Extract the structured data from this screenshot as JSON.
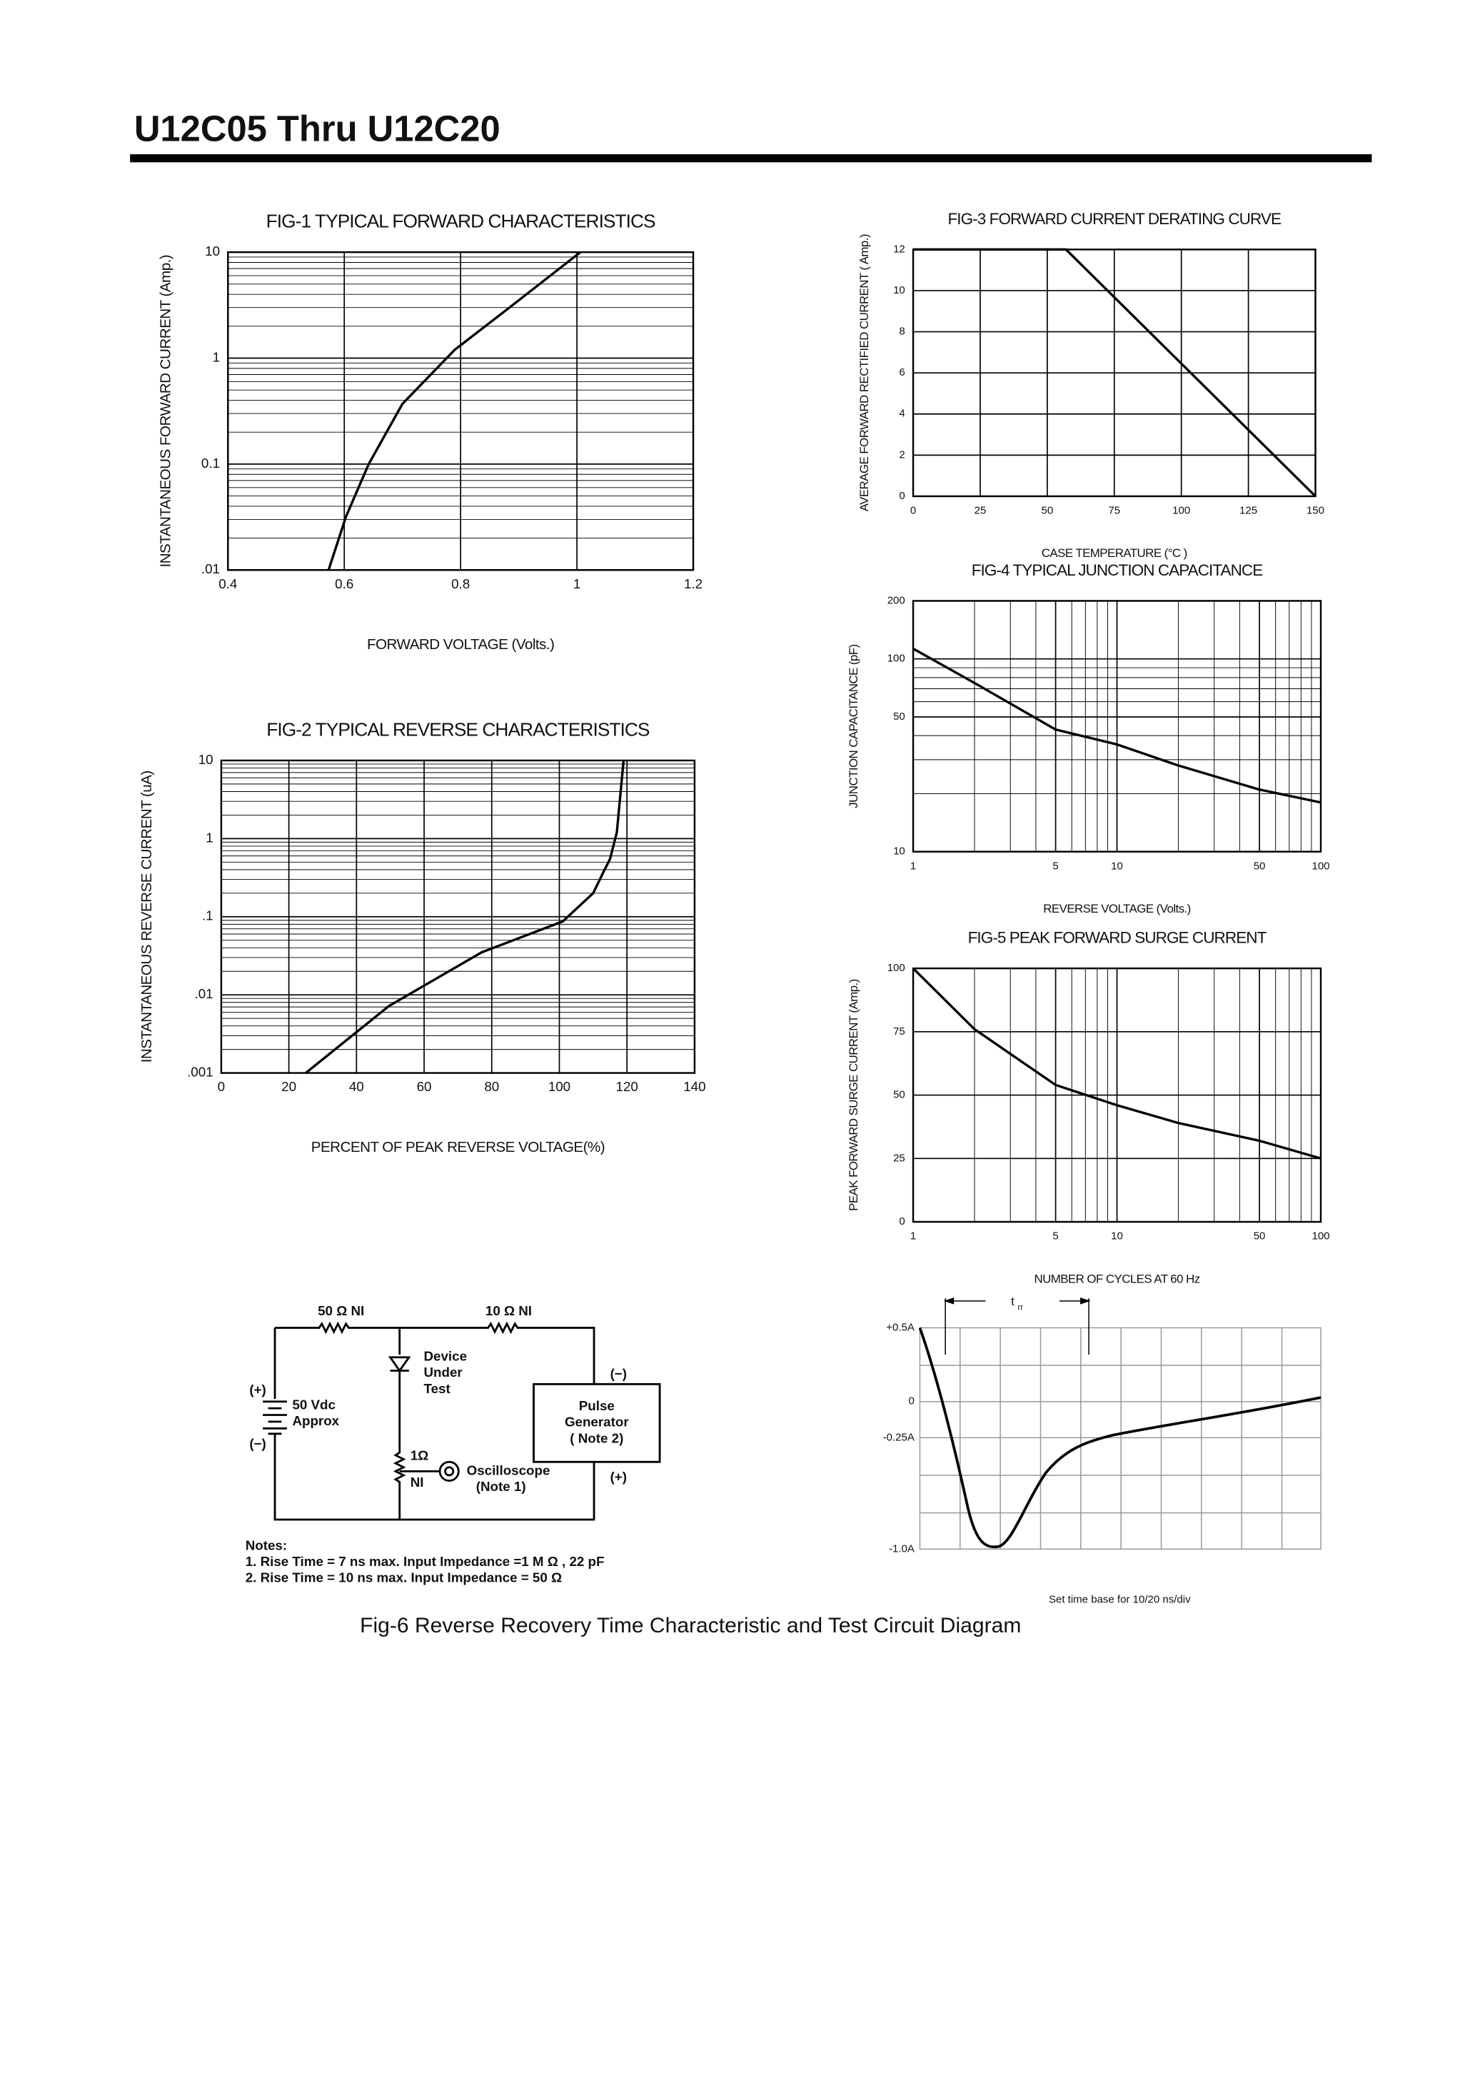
{
  "title": "U12C05 Thru U12C20",
  "chart_data": [
    {
      "type": "line",
      "title": "FIG-1 TYPICAL FORWARD CHARACTERISTICS",
      "xlabel": "FORWARD VOLTAGE (Volts.)",
      "ylabel": "INSTANTANEOUS FORWARD CURRENT (Amp.)",
      "xlim": [
        0.4,
        1.2
      ],
      "ylim": [
        0.01,
        10
      ],
      "xticks": [
        0.4,
        0.6,
        0.8,
        1,
        1.2
      ],
      "yticks": [
        {
          "value": 0.01,
          "label": ".01"
        },
        0.1,
        1,
        10
      ],
      "yscale": "log",
      "grid": true,
      "minor_grid": true,
      "series": [
        {
          "color": "#000000",
          "x": [
            0.573,
            0.603,
            0.642,
            0.7,
            0.79,
            0.884,
            1.006
          ],
          "values": [
            0.01,
            0.032,
            0.1,
            0.37,
            1.2,
            3,
            10
          ]
        }
      ]
    },
    {
      "type": "line",
      "title": "FIG-2 TYPICAL REVERSE CHARACTERISTICS",
      "xlabel": "PERCENT OF PEAK REVERSE VOLTAGE(%)",
      "ylabel": "INSTANTANEOUS REVERSE CURRENT (uA)",
      "xlim": [
        0,
        140
      ],
      "ylim": [
        0.001,
        10
      ],
      "xticks": [
        0,
        20,
        40,
        60,
        80,
        100,
        120,
        140
      ],
      "yticks": [
        {
          "value": 0.001,
          "label": ".001"
        },
        {
          "value": 0.01,
          "label": ".01"
        },
        {
          "value": 0.1,
          "label": ".1"
        },
        1,
        10
      ],
      "yscale": "log",
      "grid": true,
      "minor_grid": true,
      "series": [
        {
          "color": "#000000",
          "x": [
            25,
            49.6,
            77,
            101,
            110,
            113,
            115,
            117,
            119
          ],
          "values": [
            0.001,
            0.0072,
            0.035,
            0.087,
            0.2,
            0.37,
            0.55,
            1.2,
            10
          ]
        }
      ]
    },
    {
      "type": "line",
      "title": "FIG-3 FORWARD CURRENT DERATING CURVE",
      "xlabel": "CASE TEMPERATURE (°C )",
      "ylabel": "AVERAGE FORWARD RECTIFIED CURRENT ( Amp.)",
      "xlim": [
        0,
        150
      ],
      "ylim": [
        0,
        12
      ],
      "xticks": [
        0,
        25,
        50,
        75,
        100,
        125,
        150
      ],
      "yticks": [
        0,
        2,
        4,
        6,
        8,
        10,
        12
      ],
      "grid": true,
      "series": [
        {
          "color": "#000000",
          "x": [
            0,
            57,
            150
          ],
          "values": [
            12,
            12,
            0
          ]
        }
      ]
    },
    {
      "type": "line",
      "title": "FIG-4 TYPICAL JUNCTION CAPACITANCE",
      "xlabel": "REVERSE VOLTAGE (Volts.)",
      "ylabel": "JUNCTION CAPACITANCE (pF)",
      "xlim": [
        1,
        100
      ],
      "ylim": [
        10,
        200
      ],
      "xticks": [
        1,
        5,
        10,
        50,
        100
      ],
      "yticks": [
        10,
        50,
        100,
        200
      ],
      "xscale": "log",
      "yscale": "log",
      "grid": true,
      "minor_grid": true,
      "series": [
        {
          "color": "#000000",
          "x": [
            1,
            2,
            5,
            10,
            20,
            50,
            100
          ],
          "values": [
            113,
            75,
            43,
            36,
            28,
            21,
            18
          ]
        }
      ]
    },
    {
      "type": "line",
      "title": "FIG-5 PEAK FORWARD SURGE CURRENT",
      "xlabel": "NUMBER OF CYCLES AT 60 Hz",
      "ylabel": "PEAK FORWARD SURGE CURRENT (Amp.)",
      "xlim": [
        1,
        100
      ],
      "ylim": [
        0,
        100
      ],
      "xticks": [
        1,
        5,
        10,
        50,
        100
      ],
      "yticks": [
        0,
        25,
        50,
        75,
        100
      ],
      "xscale": "log",
      "grid": true,
      "minor_grid": true,
      "series": [
        {
          "color": "#000000",
          "x": [
            1,
            2,
            5,
            10,
            20,
            50,
            100
          ],
          "values": [
            100,
            76,
            54,
            46,
            39,
            32,
            25
          ]
        }
      ]
    }
  ],
  "circuit": {
    "r1": "50 Ω  NI",
    "r2": "10 Ω  NI",
    "dut": [
      "Device",
      "Under",
      "Test"
    ],
    "batt_plus": "(+)",
    "batt_minus": "(−)",
    "battery": [
      "50 Vdc",
      "Approx"
    ],
    "gen": [
      "Pulse",
      "Generator",
      "( Note 2)"
    ],
    "gen_minus": "(−)",
    "gen_plus": "(+)",
    "r3": [
      "1Ω",
      "NI"
    ],
    "scope": [
      "Oscilloscope",
      "(Note 1)"
    ],
    "notes": [
      "Notes:",
      "1. Rise Time = 7 ns max. Input Impedance =1 M Ω , 22 pF",
      "2. Rise Time = 10 ns max. Input Impedance = 50 Ω"
    ]
  },
  "waveform": {
    "ylabels": [
      "+0.5A",
      "0",
      "-0.25A",
      "-1.0A"
    ],
    "t": "t",
    "t_sub": "rr",
    "note": "Set time base for 10/20 ns/div"
  },
  "caption": "Fig-6 Reverse Recovery Time Characteristic and Test Circuit Diagram"
}
